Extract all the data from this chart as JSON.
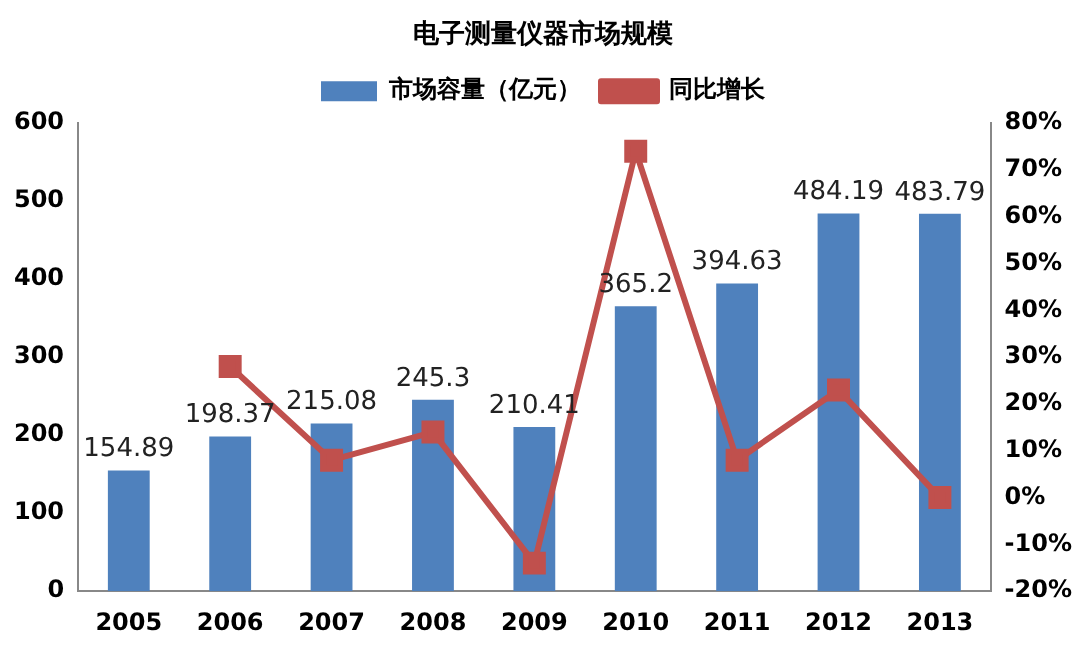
{
  "chart_data": {
    "type": "bar",
    "title": "电子测量仪器市场规模",
    "categories": [
      "2005",
      "2006",
      "2007",
      "2008",
      "2009",
      "2010",
      "2011",
      "2012",
      "2013"
    ],
    "series": [
      {
        "name": "市场容量（亿元）",
        "color": "#4f81bd",
        "values": [
          154.89,
          198.37,
          215.08,
          245.3,
          210.41,
          365.2,
          394.63,
          484.19,
          483.79
        ],
        "value_labels": [
          "154.89",
          "198.37",
          "215.08",
          "245.3",
          "210.41",
          "365.2",
          "394.63",
          "484.19",
          "483.79"
        ]
      },
      {
        "name": "同比增长",
        "type": "line",
        "axis": "y2",
        "color": "#c0504d",
        "values": [
          null,
          28,
          8,
          14,
          -14,
          74,
          8,
          23,
          0
        ]
      }
    ],
    "ylim": [
      0,
      600
    ],
    "yticks": [
      0,
      100,
      200,
      300,
      400,
      500,
      600
    ],
    "y2lim": [
      -20,
      80
    ],
    "y2ticks": [
      {
        "value": -20,
        "label": "-20%"
      },
      {
        "value": -10,
        "label": "-10%"
      },
      {
        "value": 0,
        "label": "0%"
      },
      {
        "value": 10,
        "label": "10%"
      },
      {
        "value": 20,
        "label": "20%"
      },
      {
        "value": 30,
        "label": "30%"
      },
      {
        "value": 40,
        "label": "40%"
      },
      {
        "value": 50,
        "label": "50%"
      },
      {
        "value": 60,
        "label": "60%"
      },
      {
        "value": 70,
        "label": "70%"
      },
      {
        "value": 80,
        "label": "80%"
      }
    ],
    "grid": false,
    "legend": "top",
    "marker": "square",
    "line_style": "solid"
  }
}
